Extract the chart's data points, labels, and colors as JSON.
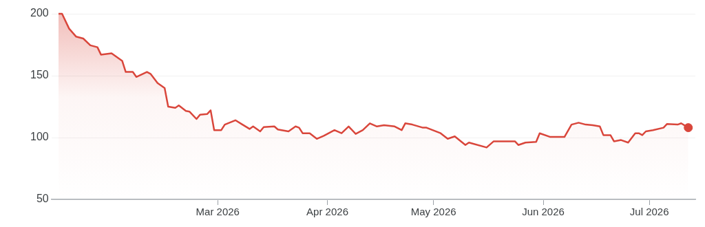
{
  "chart_data": {
    "type": "area",
    "xlim": [
      "2026-01-13",
      "2026-07-14"
    ],
    "ylim": [
      50,
      200
    ],
    "yticks": [
      50,
      100,
      150,
      200
    ],
    "xticks": [
      {
        "value": "2026-03-01",
        "label": "Mar 2026"
      },
      {
        "value": "2026-04-01",
        "label": "Apr 2026"
      },
      {
        "value": "2026-05-01",
        "label": "May 2026"
      },
      {
        "value": "2026-06-01",
        "label": "Jun 2026"
      },
      {
        "value": "2026-07-01",
        "label": "Jul 2026"
      }
    ],
    "grid": "y",
    "legend": false,
    "series": [
      {
        "type": "area",
        "color": "#d9463b",
        "marker": "none",
        "line_style": "solid",
        "x": [
          "2026-01-15",
          "2026-01-16",
          "2026-01-18",
          "2026-01-20",
          "2026-01-22",
          "2026-01-24",
          "2026-01-26",
          "2026-01-27",
          "2026-01-30",
          "2026-02-02",
          "2026-02-03",
          "2026-02-05",
          "2026-02-06",
          "2026-02-09",
          "2026-02-10",
          "2026-02-12",
          "2026-02-14",
          "2026-02-15",
          "2026-02-17",
          "2026-02-18",
          "2026-02-20",
          "2026-02-21",
          "2026-02-23",
          "2026-02-24",
          "2026-02-26",
          "2026-02-27",
          "2026-02-28",
          "2026-03-02",
          "2026-03-03",
          "2026-03-06",
          "2026-03-08",
          "2026-03-10",
          "2026-03-11",
          "2026-03-13",
          "2026-03-14",
          "2026-03-17",
          "2026-03-18",
          "2026-03-21",
          "2026-03-23",
          "2026-03-24",
          "2026-03-25",
          "2026-03-27",
          "2026-03-29",
          "2026-03-31",
          "2026-04-03",
          "2026-04-05",
          "2026-04-07",
          "2026-04-09",
          "2026-04-11",
          "2026-04-13",
          "2026-04-15",
          "2026-04-17",
          "2026-04-20",
          "2026-04-22",
          "2026-04-23",
          "2026-04-25",
          "2026-04-28",
          "2026-04-29",
          "2026-05-03",
          "2026-05-05",
          "2026-05-07",
          "2026-05-10",
          "2026-05-11",
          "2026-05-16",
          "2026-05-18",
          "2026-05-24",
          "2026-05-25",
          "2026-05-27",
          "2026-05-30",
          "2026-05-31",
          "2026-06-03",
          "2026-06-07",
          "2026-06-09",
          "2026-06-11",
          "2026-06-13",
          "2026-06-15",
          "2026-06-17",
          "2026-06-18",
          "2026-06-20",
          "2026-06-21",
          "2026-06-23",
          "2026-06-25",
          "2026-06-27",
          "2026-06-28",
          "2026-06-29",
          "2026-06-30",
          "2026-07-02",
          "2026-07-05",
          "2026-07-06",
          "2026-07-09",
          "2026-07-10",
          "2026-07-12"
        ],
        "values": [
          200,
          200,
          188,
          181.5,
          180,
          174.5,
          173,
          167,
          168,
          162,
          153,
          153,
          149,
          153,
          151.5,
          144,
          140,
          125,
          124,
          126,
          121.5,
          121,
          115,
          118.5,
          119,
          122,
          106,
          106,
          110.5,
          114,
          110.5,
          107,
          109,
          105,
          108.5,
          109,
          106.5,
          105,
          109,
          108,
          103.5,
          103.5,
          99,
          101.5,
          106,
          103.5,
          109,
          103,
          106,
          111.5,
          109,
          110,
          109,
          106,
          111.5,
          110.5,
          108,
          108,
          103.5,
          99,
          101,
          94,
          96,
          92,
          97,
          97,
          94,
          96,
          96.5,
          103.5,
          100.5,
          100.5,
          110.5,
          112,
          110.5,
          110,
          109,
          102,
          102,
          97,
          98,
          96,
          103.5,
          103.5,
          102,
          105,
          106,
          108,
          111,
          110.5,
          111.5,
          108
        ]
      },
      {
        "type": "scatter",
        "color": "#d9463b",
        "marker": "circle",
        "x": [
          "2026-07-12"
        ],
        "values": [
          108
        ]
      }
    ]
  }
}
